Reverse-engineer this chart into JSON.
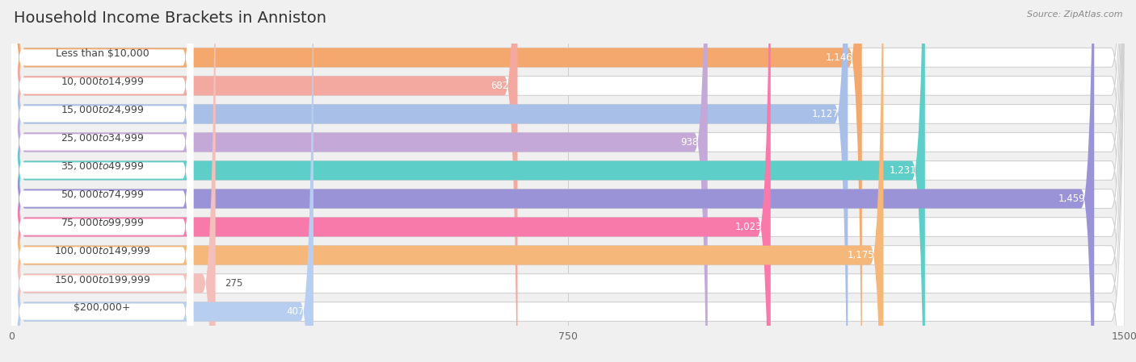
{
  "title": "Household Income Brackets in Anniston",
  "source": "Source: ZipAtlas.com",
  "categories": [
    "Less than $10,000",
    "$10,000 to $14,999",
    "$15,000 to $24,999",
    "$25,000 to $34,999",
    "$35,000 to $49,999",
    "$50,000 to $74,999",
    "$75,000 to $99,999",
    "$100,000 to $149,999",
    "$150,000 to $199,999",
    "$200,000+"
  ],
  "values": [
    1146,
    682,
    1127,
    938,
    1231,
    1459,
    1023,
    1175,
    275,
    407
  ],
  "bar_colors": [
    "#f5a86e",
    "#f4a9a0",
    "#a8bfe8",
    "#c4a8d8",
    "#5ecfc8",
    "#9b93d8",
    "#f77aaa",
    "#f5b87a",
    "#f4bfbb",
    "#b8cef0"
  ],
  "xlim": [
    0,
    1500
  ],
  "xticks": [
    0,
    750,
    1500
  ],
  "background_color": "#f0f0f0",
  "title_fontsize": 14,
  "label_fontsize": 9,
  "value_fontsize": 8.5,
  "source_fontsize": 8
}
